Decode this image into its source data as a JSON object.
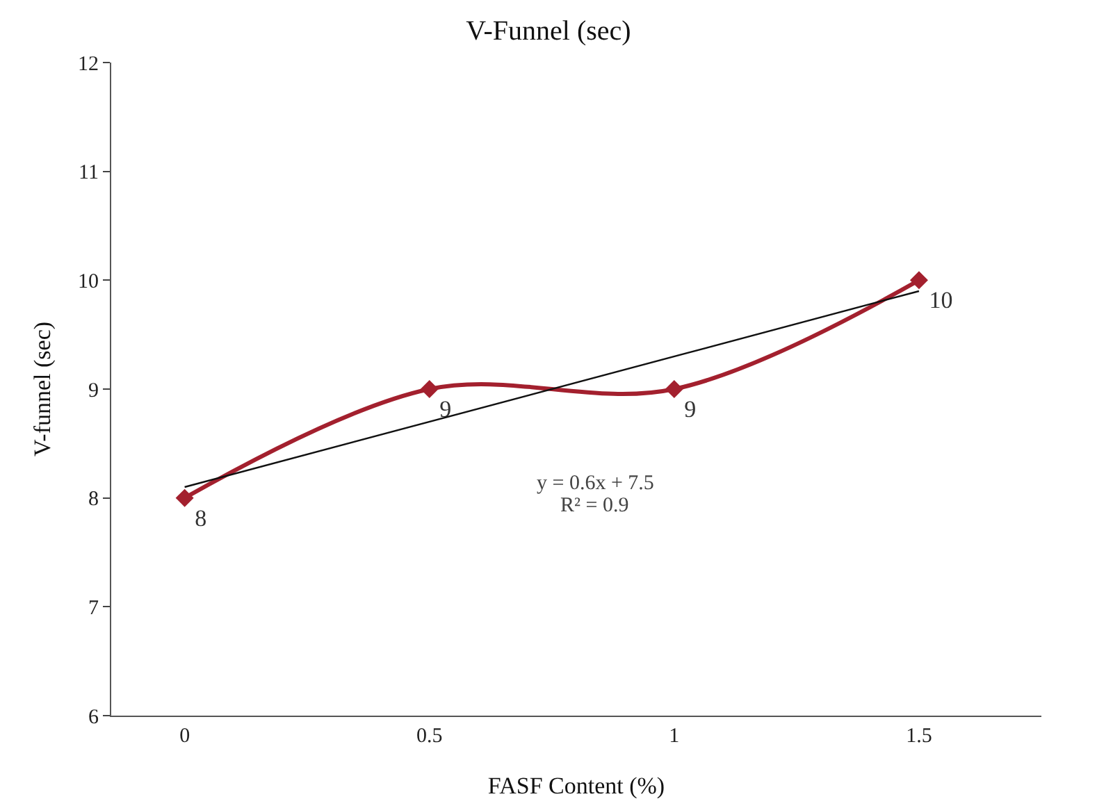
{
  "chart_data": {
    "type": "line",
    "title": "V-Funnel (sec)",
    "xlabel": "FASF Content (%)",
    "ylabel": "V-funnel (sec)",
    "x": [
      0,
      0.5,
      1,
      1.5
    ],
    "series": [
      {
        "color": "#a3202e",
        "values": [
          8,
          9,
          9,
          10
        ],
        "marker": "diamond",
        "data_labels": true
      },
      {
        "type": "line",
        "color": "#111111",
        "x": [
          0,
          1.5
        ],
        "values": [
          8.1,
          9.9
        ],
        "marker": "none"
      }
    ],
    "annotations": [
      "y = 0.6x + 7.5",
      "R² = 0.9"
    ],
    "xlim": [
      -0.15,
      1.75
    ],
    "xticks": [
      0,
      0.5,
      1,
      1.5
    ],
    "ylim": [
      6,
      12
    ],
    "yticks": [
      6,
      7,
      8,
      9,
      10,
      11,
      12
    ],
    "grid": false
  }
}
